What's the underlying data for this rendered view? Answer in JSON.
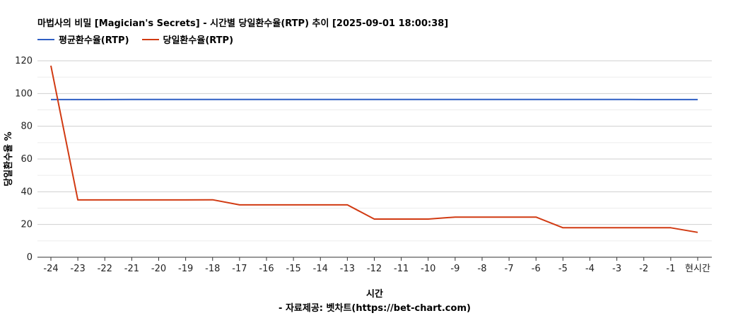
{
  "chart_data": {
    "type": "line",
    "title": "마법사의 비밀 [Magician's Secrets] - 시간별 당일환수율(RTP) 추이 [2025-09-01 18:00:38]",
    "xlabel": "시간",
    "credit": "- 자료제공: 벳차트(https://bet-chart.com)",
    "ylabel": "당일환수율 %",
    "ylim": [
      0,
      120
    ],
    "yticks": [
      0,
      20,
      40,
      60,
      80,
      100,
      120
    ],
    "categories": [
      "-24",
      "-23",
      "-22",
      "-21",
      "-20",
      "-19",
      "-18",
      "-17",
      "-16",
      "-15",
      "-14",
      "-13",
      "-12",
      "-11",
      "-10",
      "-9",
      "-8",
      "-7",
      "-6",
      "-5",
      "-4",
      "-3",
      "-2",
      "-1",
      "현시간"
    ],
    "legend_position": "top-left",
    "grid": true,
    "series": [
      {
        "name": "평균환수율(RTP)",
        "color": "#2f5fc4",
        "values": [
          96.3,
          96.3,
          96.3,
          96.4,
          96.4,
          96.4,
          96.4,
          96.4,
          96.4,
          96.4,
          96.4,
          96.4,
          96.4,
          96.4,
          96.4,
          96.4,
          96.4,
          96.4,
          96.4,
          96.4,
          96.4,
          96.4,
          96.3,
          96.3,
          96.3
        ]
      },
      {
        "name": "당일환수율(RTP)",
        "color": "#d13a12",
        "values": [
          117.0,
          35.0,
          35.0,
          35.0,
          35.0,
          35.0,
          35.1,
          32.0,
          32.0,
          32.0,
          32.0,
          32.0,
          23.3,
          23.3,
          23.3,
          24.5,
          24.5,
          24.5,
          24.5,
          18.0,
          18.0,
          18.0,
          18.0,
          18.0,
          15.2
        ]
      }
    ]
  }
}
